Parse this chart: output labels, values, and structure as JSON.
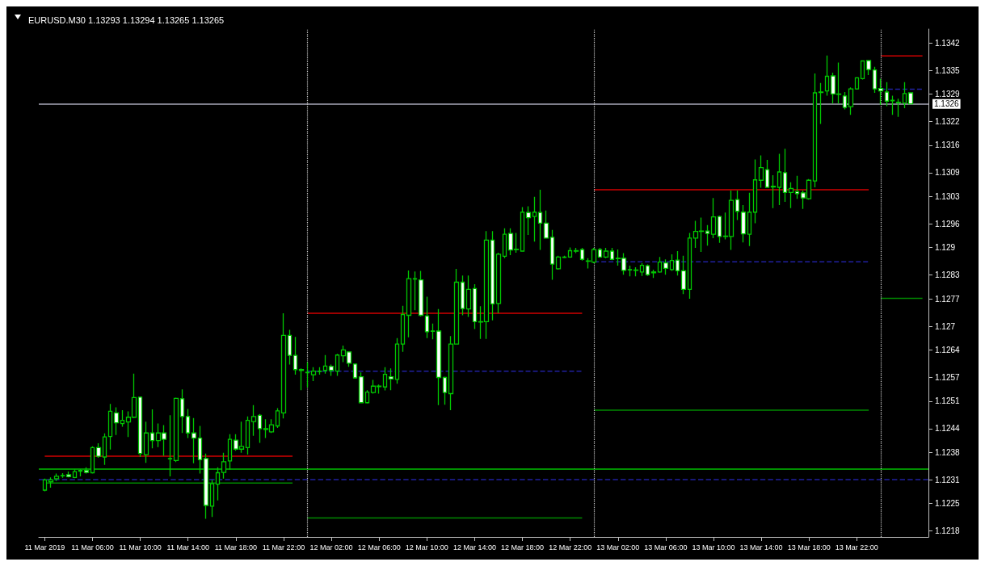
{
  "chart_data": {
    "type": "candlestick",
    "title": "EURUSD.M30 1.13293 1.13294 1.13265 1.13265",
    "color": "#00c800",
    "x": [
      "2019-03-11T02:00",
      "2019-03-11T02:30",
      "2019-03-11T03:00",
      "2019-03-11T03:30",
      "2019-03-11T04:00",
      "2019-03-11T04:30",
      "2019-03-11T05:00",
      "2019-03-11T05:30",
      "2019-03-11T06:00",
      "2019-03-11T06:30",
      "2019-03-11T07:00",
      "2019-03-11T07:30",
      "2019-03-11T08:00",
      "2019-03-11T08:30",
      "2019-03-11T09:00",
      "2019-03-11T09:30",
      "2019-03-11T10:00",
      "2019-03-11T10:30",
      "2019-03-11T11:00",
      "2019-03-11T11:30",
      "2019-03-11T12:00",
      "2019-03-11T12:30",
      "2019-03-11T13:00",
      "2019-03-11T13:30",
      "2019-03-11T14:00",
      "2019-03-11T14:30",
      "2019-03-11T15:00",
      "2019-03-11T15:30",
      "2019-03-11T16:00",
      "2019-03-11T16:30",
      "2019-03-11T17:00",
      "2019-03-11T17:30",
      "2019-03-11T18:00",
      "2019-03-11T18:30",
      "2019-03-11T19:00",
      "2019-03-11T19:30",
      "2019-03-11T20:00",
      "2019-03-11T20:30",
      "2019-03-11T21:00",
      "2019-03-11T21:30",
      "2019-03-11T22:00",
      "2019-03-11T22:30",
      "2019-03-11T23:00",
      "2019-03-11T23:30",
      "2019-03-12T00:00",
      "2019-03-12T00:30",
      "2019-03-12T01:00",
      "2019-03-12T01:30",
      "2019-03-12T02:00",
      "2019-03-12T02:30",
      "2019-03-12T03:00",
      "2019-03-12T03:30",
      "2019-03-12T04:00",
      "2019-03-12T04:30",
      "2019-03-12T05:00",
      "2019-03-12T05:30",
      "2019-03-12T06:00",
      "2019-03-12T06:30",
      "2019-03-12T07:00",
      "2019-03-12T07:30",
      "2019-03-12T08:00",
      "2019-03-12T08:30",
      "2019-03-12T09:00",
      "2019-03-12T09:30",
      "2019-03-12T10:00",
      "2019-03-12T10:30",
      "2019-03-12T11:00",
      "2019-03-12T11:30",
      "2019-03-12T12:00",
      "2019-03-12T12:30",
      "2019-03-12T13:00",
      "2019-03-12T13:30",
      "2019-03-12T14:00",
      "2019-03-12T14:30",
      "2019-03-12T15:00",
      "2019-03-12T15:30",
      "2019-03-12T16:00",
      "2019-03-12T16:30",
      "2019-03-12T17:00",
      "2019-03-12T17:30",
      "2019-03-12T18:00",
      "2019-03-12T18:30",
      "2019-03-12T19:00",
      "2019-03-12T19:30",
      "2019-03-12T20:00",
      "2019-03-12T20:30",
      "2019-03-12T21:00",
      "2019-03-12T21:30",
      "2019-03-12T22:00",
      "2019-03-12T22:30",
      "2019-03-12T23:00",
      "2019-03-12T23:30",
      "2019-03-13T00:00",
      "2019-03-13T00:30",
      "2019-03-13T01:00",
      "2019-03-13T01:30",
      "2019-03-13T02:00",
      "2019-03-13T02:30",
      "2019-03-13T03:00",
      "2019-03-13T03:30",
      "2019-03-13T04:00",
      "2019-03-13T04:30",
      "2019-03-13T05:00",
      "2019-03-13T05:30",
      "2019-03-13T06:00",
      "2019-03-13T06:30",
      "2019-03-13T07:00",
      "2019-03-13T07:30",
      "2019-03-13T08:00",
      "2019-03-13T08:30",
      "2019-03-13T09:00",
      "2019-03-13T09:30",
      "2019-03-13T10:00",
      "2019-03-13T10:30",
      "2019-03-13T11:00",
      "2019-03-13T11:30",
      "2019-03-13T12:00",
      "2019-03-13T12:30",
      "2019-03-13T13:00",
      "2019-03-13T13:30",
      "2019-03-13T14:00",
      "2019-03-13T14:30",
      "2019-03-13T15:00",
      "2019-03-13T15:30",
      "2019-03-13T16:00",
      "2019-03-13T16:30",
      "2019-03-13T17:00",
      "2019-03-13T17:30",
      "2019-03-13T18:00",
      "2019-03-13T18:30",
      "2019-03-13T19:00",
      "2019-03-13T19:30",
      "2019-03-13T20:00",
      "2019-03-13T20:30",
      "2019-03-13T21:00",
      "2019-03-13T21:30",
      "2019-03-13T22:00",
      "2019-03-13T22:30",
      "2019-03-13T23:00",
      "2019-03-13T23:30",
      "2019-03-14T00:00",
      "2019-03-14T00:30",
      "2019-03-14T01:00",
      "2019-03-14T01:30",
      "2019-03-14T02:00",
      "2019-03-14T02:30"
    ],
    "ohlc": [
      [
        1.12284,
        1.12313,
        1.12281,
        1.1231
      ],
      [
        1.12305,
        1.12316,
        1.1229,
        1.1231
      ],
      [
        1.12313,
        1.12326,
        1.12307,
        1.12319
      ],
      [
        1.1232,
        1.12327,
        1.12315,
        1.12321
      ],
      [
        1.12323,
        1.12331,
        1.12316,
        1.12318
      ],
      [
        1.12316,
        1.12336,
        1.12314,
        1.12331
      ],
      [
        1.12332,
        1.12337,
        1.12319,
        1.12334
      ],
      [
        1.12334,
        1.12342,
        1.12326,
        1.12329
      ],
      [
        1.12328,
        1.12395,
        1.12326,
        1.12392
      ],
      [
        1.12392,
        1.12403,
        1.12366,
        1.1237
      ],
      [
        1.12368,
        1.12428,
        1.12348,
        1.12419
      ],
      [
        1.1242,
        1.12503,
        1.12387,
        1.12484
      ],
      [
        1.1248,
        1.12494,
        1.12424,
        1.12455
      ],
      [
        1.12453,
        1.12487,
        1.12445,
        1.12461
      ],
      [
        1.12457,
        1.12484,
        1.12419,
        1.12469
      ],
      [
        1.12469,
        1.1258,
        1.12467,
        1.12519
      ],
      [
        1.1252,
        1.12522,
        1.12368,
        1.12377
      ],
      [
        1.12374,
        1.12458,
        1.12353,
        1.12429
      ],
      [
        1.12429,
        1.12489,
        1.1239,
        1.1241
      ],
      [
        1.1241,
        1.12453,
        1.12393,
        1.12429
      ],
      [
        1.12429,
        1.12449,
        1.12371,
        1.12413
      ],
      [
        1.12363,
        1.12474,
        1.12319,
        1.12364
      ],
      [
        1.12359,
        1.12519,
        1.12355,
        1.12517
      ],
      [
        1.12516,
        1.1254,
        1.12429,
        1.12471
      ],
      [
        1.12471,
        1.1249,
        1.12416,
        1.12429
      ],
      [
        1.12429,
        1.12467,
        1.12352,
        1.12416
      ],
      [
        1.12416,
        1.12447,
        1.12326,
        1.12361
      ],
      [
        1.12364,
        1.12377,
        1.12211,
        1.12245
      ],
      [
        1.12243,
        1.1231,
        1.12216,
        1.123
      ],
      [
        1.12299,
        1.12342,
        1.12258,
        1.12328
      ],
      [
        1.12329,
        1.12379,
        1.12313,
        1.12356
      ],
      [
        1.12358,
        1.12426,
        1.12336,
        1.12413
      ],
      [
        1.12411,
        1.12426,
        1.12384,
        1.12388
      ],
      [
        1.12388,
        1.12458,
        1.12379,
        1.12395
      ],
      [
        1.12392,
        1.12471,
        1.12374,
        1.12461
      ],
      [
        1.12458,
        1.125,
        1.12422,
        1.12471
      ],
      [
        1.12474,
        1.12477,
        1.12404,
        1.1244
      ],
      [
        1.1244,
        1.12464,
        1.12416,
        1.12438
      ],
      [
        1.12432,
        1.12464,
        1.12429,
        1.1245
      ],
      [
        1.12447,
        1.12492,
        1.12442,
        1.12485
      ],
      [
        1.1248,
        1.12733,
        1.12466,
        1.12677
      ],
      [
        1.12677,
        1.12691,
        1.12603,
        1.12626
      ],
      [
        1.12626,
        1.12673,
        1.12577,
        1.1259
      ],
      [
        1.1259,
        1.12593,
        1.12538,
        1.12588
      ],
      [
        1.12583,
        1.12609,
        1.12545,
        1.12582
      ],
      [
        1.12577,
        1.12596,
        1.12561,
        1.12586
      ],
      [
        1.12585,
        1.12596,
        1.12577,
        1.12586
      ],
      [
        1.12588,
        1.12627,
        1.1258,
        1.12599
      ],
      [
        1.12598,
        1.12603,
        1.12574,
        1.12588
      ],
      [
        1.12586,
        1.1263,
        1.12574,
        1.12627
      ],
      [
        1.12625,
        1.12651,
        1.12609,
        1.1264
      ],
      [
        1.12635,
        1.12636,
        1.12597,
        1.12606
      ],
      [
        1.12604,
        1.12606,
        1.12567,
        1.12569
      ],
      [
        1.12572,
        1.12583,
        1.12505,
        1.12506
      ],
      [
        1.12506,
        1.12538,
        1.12504,
        1.12533
      ],
      [
        1.12532,
        1.12564,
        1.12529,
        1.12548
      ],
      [
        1.12547,
        1.12552,
        1.12529,
        1.12548
      ],
      [
        1.12546,
        1.12596,
        1.12537,
        1.12578
      ],
      [
        1.12572,
        1.12593,
        1.12538,
        1.12566
      ],
      [
        1.12565,
        1.1267,
        1.12554,
        1.12655
      ],
      [
        1.12655,
        1.12752,
        1.12635,
        1.1273
      ],
      [
        1.12728,
        1.12842,
        1.12672,
        1.12821
      ],
      [
        1.1282,
        1.12839,
        1.12741,
        1.12821
      ],
      [
        1.12818,
        1.12841,
        1.12725,
        1.12728
      ],
      [
        1.12726,
        1.12775,
        1.1267,
        1.12686
      ],
      [
        1.12688,
        1.12707,
        1.12667,
        1.12687
      ],
      [
        1.12688,
        1.12744,
        1.125,
        1.1257
      ],
      [
        1.1257,
        1.12572,
        1.12501,
        1.12532
      ],
      [
        1.12529,
        1.12675,
        1.12487,
        1.12655
      ],
      [
        1.12655,
        1.12846,
        1.12654,
        1.12812
      ],
      [
        1.12812,
        1.12829,
        1.12728,
        1.12745
      ],
      [
        1.12744,
        1.12829,
        1.12724,
        1.12794
      ],
      [
        1.12796,
        1.12807,
        1.12693,
        1.12712
      ],
      [
        1.12712,
        1.12751,
        1.12668,
        1.12711
      ],
      [
        1.12712,
        1.12942,
        1.12668,
        1.12919
      ],
      [
        1.12919,
        1.12942,
        1.12715,
        1.12757
      ],
      [
        1.12758,
        1.12887,
        1.12733,
        1.12883
      ],
      [
        1.12878,
        1.12949,
        1.12873,
        1.12934
      ],
      [
        1.12936,
        1.12949,
        1.12881,
        1.12894
      ],
      [
        1.12896,
        1.12937,
        1.12887,
        1.12895
      ],
      [
        1.12891,
        1.13003,
        1.1289,
        1.1299
      ],
      [
        1.12989,
        1.13005,
        1.12932,
        1.12976
      ],
      [
        1.12979,
        1.13029,
        1.12915,
        1.1299
      ],
      [
        1.12989,
        1.13047,
        1.12894,
        1.12962
      ],
      [
        1.12962,
        1.12994,
        1.12923,
        1.12924
      ],
      [
        1.12926,
        1.12945,
        1.12818,
        1.12858
      ],
      [
        1.12846,
        1.12879,
        1.12844,
        1.12876
      ],
      [
        1.12875,
        1.12879,
        1.12873,
        1.12876
      ],
      [
        1.12876,
        1.129,
        1.12874,
        1.12892
      ],
      [
        1.12892,
        1.12899,
        1.12886,
        1.12891
      ],
      [
        1.12895,
        1.12899,
        1.12867,
        1.1287
      ],
      [
        1.12865,
        1.12873,
        1.12847,
        1.12866
      ],
      [
        1.12863,
        1.12899,
        1.1286,
        1.12895
      ],
      [
        1.12895,
        1.12899,
        1.12874,
        1.12876
      ],
      [
        1.12876,
        1.12899,
        1.12873,
        1.12891
      ],
      [
        1.12891,
        1.12899,
        1.12868,
        1.1287
      ],
      [
        1.12873,
        1.12895,
        1.12854,
        1.12872
      ],
      [
        1.12873,
        1.12886,
        1.12831,
        1.12842
      ],
      [
        1.12844,
        1.12854,
        1.12827,
        1.12843
      ],
      [
        1.12843,
        1.1285,
        1.12827,
        1.12842
      ],
      [
        1.12838,
        1.1286,
        1.12828,
        1.12855
      ],
      [
        1.12854,
        1.12857,
        1.12828,
        1.12831
      ],
      [
        1.12838,
        1.12844,
        1.12823,
        1.12836
      ],
      [
        1.12838,
        1.12876,
        1.12836,
        1.12863
      ],
      [
        1.12861,
        1.1287,
        1.12831,
        1.12847
      ],
      [
        1.12844,
        1.12883,
        1.12841,
        1.12867
      ],
      [
        1.12868,
        1.12891,
        1.12829,
        1.12841
      ],
      [
        1.12841,
        1.12879,
        1.12782,
        1.12794
      ],
      [
        1.12794,
        1.12937,
        1.1277,
        1.12924
      ],
      [
        1.12924,
        1.12968,
        1.12899,
        1.12941
      ],
      [
        1.12941,
        1.12976,
        1.12889,
        1.12942
      ],
      [
        1.12942,
        1.12957,
        1.12905,
        1.12936
      ],
      [
        1.12934,
        1.13026,
        1.12924,
        1.12978
      ],
      [
        1.12979,
        1.12981,
        1.12912,
        1.12928
      ],
      [
        1.12929,
        1.12989,
        1.12921,
        1.12928
      ],
      [
        1.12928,
        1.13045,
        1.12894,
        1.1302
      ],
      [
        1.13022,
        1.13045,
        1.1297,
        1.12992
      ],
      [
        1.1299,
        1.13008,
        1.12913,
        1.12935
      ],
      [
        1.12934,
        1.13039,
        1.12904,
        1.1299
      ],
      [
        1.1299,
        1.13124,
        1.12962,
        1.13072
      ],
      [
        1.13071,
        1.13134,
        1.13052,
        1.13103
      ],
      [
        1.13098,
        1.13123,
        1.13052,
        1.13053
      ],
      [
        1.13056,
        1.13084,
        1.13,
        1.13054
      ],
      [
        1.13053,
        1.13138,
        1.13008,
        1.13092
      ],
      [
        1.1309,
        1.13151,
        1.13016,
        1.1304
      ],
      [
        1.1304,
        1.13066,
        1.13,
        1.1305
      ],
      [
        1.13042,
        1.13082,
        1.13024,
        1.13037
      ],
      [
        1.13039,
        1.13045,
        1.12998,
        1.13026
      ],
      [
        1.13024,
        1.13074,
        1.13022,
        1.13071
      ],
      [
        1.13069,
        1.13342,
        1.13053,
        1.13293
      ],
      [
        1.13294,
        1.13318,
        1.13214,
        1.13295
      ],
      [
        1.13298,
        1.13388,
        1.13286,
        1.13335
      ],
      [
        1.13336,
        1.13344,
        1.13266,
        1.1329
      ],
      [
        1.1329,
        1.1337,
        1.13266,
        1.13289
      ],
      [
        1.13285,
        1.13295,
        1.13251,
        1.13256
      ],
      [
        1.13258,
        1.13307,
        1.13237,
        1.13303
      ],
      [
        1.13303,
        1.13333,
        1.13301,
        1.13331
      ],
      [
        1.13329,
        1.13375,
        1.13327,
        1.13374
      ],
      [
        1.13375,
        1.13376,
        1.13338,
        1.13352
      ],
      [
        1.13351,
        1.13359,
        1.13293,
        1.13303
      ],
      [
        1.13304,
        1.13329,
        1.13262,
        1.13298
      ],
      [
        1.13295,
        1.1332,
        1.13259,
        1.13272
      ],
      [
        1.13274,
        1.13286,
        1.13237,
        1.13273
      ],
      [
        1.13269,
        1.13278,
        1.13232,
        1.13268
      ],
      [
        1.13267,
        1.1332,
        1.13254,
        1.13291
      ],
      [
        1.13293,
        1.13294,
        1.13265,
        1.13265
      ]
    ],
    "xlim": [
      "2019-03-11T01:30",
      "2019-03-14T04:00"
    ],
    "xticks": [
      {
        "value": "2019-03-11T02:00",
        "label": "11 Mar 2019"
      },
      {
        "value": "2019-03-11T06:00",
        "label": "11 Mar 06:00"
      },
      {
        "value": "2019-03-11T10:00",
        "label": "11 Mar 10:00"
      },
      {
        "value": "2019-03-11T14:00",
        "label": "11 Mar 14:00"
      },
      {
        "value": "2019-03-11T18:00",
        "label": "11 Mar 18:00"
      },
      {
        "value": "2019-03-11T22:00",
        "label": "11 Mar 22:00"
      },
      {
        "value": "2019-03-12T02:00",
        "label": "12 Mar 02:00"
      },
      {
        "value": "2019-03-12T06:00",
        "label": "12 Mar 06:00"
      },
      {
        "value": "2019-03-12T10:00",
        "label": "12 Mar 10:00"
      },
      {
        "value": "2019-03-12T14:00",
        "label": "12 Mar 14:00"
      },
      {
        "value": "2019-03-12T18:00",
        "label": "12 Mar 18:00"
      },
      {
        "value": "2019-03-12T22:00",
        "label": "12 Mar 22:00"
      },
      {
        "value": "2019-03-13T02:00",
        "label": "13 Mar 02:00"
      },
      {
        "value": "2019-03-13T06:00",
        "label": "13 Mar 06:00"
      },
      {
        "value": "2019-03-13T10:00",
        "label": "13 Mar 10:00"
      },
      {
        "value": "2019-03-13T14:00",
        "label": "13 Mar 14:00"
      },
      {
        "value": "2019-03-13T18:00",
        "label": "13 Mar 18:00"
      },
      {
        "value": "2019-03-13T22:00",
        "label": "13 Mar 22:00"
      }
    ],
    "ylim": [
      1.12165,
      1.13455
    ],
    "yticks": [
      1.1218,
      1.1225,
      1.1231,
      1.1238,
      1.1244,
      1.1251,
      1.1257,
      1.1264,
      1.127,
      1.1277,
      1.1283,
      1.129,
      1.1296,
      1.1303,
      1.1309,
      1.1316,
      1.1322,
      1.1329,
      1.1335,
      1.1342
    ],
    "ref_lines": [
      {
        "axis": "y",
        "value": 1.13265,
        "label": "1.1326",
        "color": "#a8a8b8"
      },
      {
        "axis": "y",
        "value": 1.12337,
        "color": "#00c000"
      },
      {
        "axis": "y",
        "value": 1.12312,
        "color": "#2020a0",
        "line_style": "dashed"
      },
      {
        "axis": "x",
        "value": "2019-03-12T00:00",
        "color": "#c8c8c8",
        "line_style": "dotted"
      },
      {
        "axis": "x",
        "value": "2019-03-13T00:00",
        "color": "#c8c8c8",
        "line_style": "dotted"
      },
      {
        "axis": "x",
        "value": "2019-03-14T00:00",
        "color": "#c8c8c8",
        "line_style": "dotted"
      }
    ],
    "series": [
      {
        "type": "line",
        "color": "#d00000",
        "line_style": "solid",
        "x": [
          "2019-03-11T02:00",
          "2019-03-11T22:45"
        ],
        "values": [
          1.1237,
          1.1237
        ]
      },
      {
        "type": "line",
        "color": "#008800",
        "line_style": "solid",
        "x": [
          "2019-03-11T02:00",
          "2019-03-11T22:45"
        ],
        "values": [
          1.12302,
          1.12302
        ]
      },
      {
        "type": "line",
        "color": "#d00000",
        "line_style": "solid",
        "x": [
          "2019-03-12T00:00",
          "2019-03-12T23:00"
        ],
        "values": [
          1.12733,
          1.12733
        ]
      },
      {
        "type": "line",
        "color": "#008800",
        "line_style": "solid",
        "x": [
          "2019-03-12T00:00",
          "2019-03-12T23:00"
        ],
        "values": [
          1.12213,
          1.12213
        ]
      },
      {
        "type": "line",
        "color": "#2020a0",
        "line_style": "dashed",
        "x": [
          "2019-03-12T00:00",
          "2019-03-12T23:00"
        ],
        "values": [
          1.12586,
          1.12586
        ]
      },
      {
        "type": "line",
        "color": "#d00000",
        "line_style": "solid",
        "x": [
          "2019-03-13T00:00",
          "2019-03-13T23:00"
        ],
        "values": [
          1.13047,
          1.13047
        ]
      },
      {
        "type": "line",
        "color": "#008800",
        "line_style": "solid",
        "x": [
          "2019-03-13T00:00",
          "2019-03-13T23:00"
        ],
        "values": [
          1.12487,
          1.12487
        ]
      },
      {
        "type": "line",
        "color": "#2020a0",
        "line_style": "dashed",
        "x": [
          "2019-03-13T00:00",
          "2019-03-13T23:00"
        ],
        "values": [
          1.12864,
          1.12864
        ]
      },
      {
        "type": "line",
        "color": "#d00000",
        "line_style": "solid",
        "x": [
          "2019-03-14T00:00",
          "2019-03-14T03:30"
        ],
        "values": [
          1.13387,
          1.13387
        ]
      },
      {
        "type": "line",
        "color": "#008800",
        "line_style": "solid",
        "x": [
          "2019-03-14T00:00",
          "2019-03-14T03:30"
        ],
        "values": [
          1.12771,
          1.12771
        ]
      },
      {
        "type": "line",
        "color": "#2020a0",
        "line_style": "dashed",
        "x": [
          "2019-03-14T00:00",
          "2019-03-14T03:30"
        ],
        "values": [
          1.13302,
          1.13302
        ]
      }
    ]
  }
}
